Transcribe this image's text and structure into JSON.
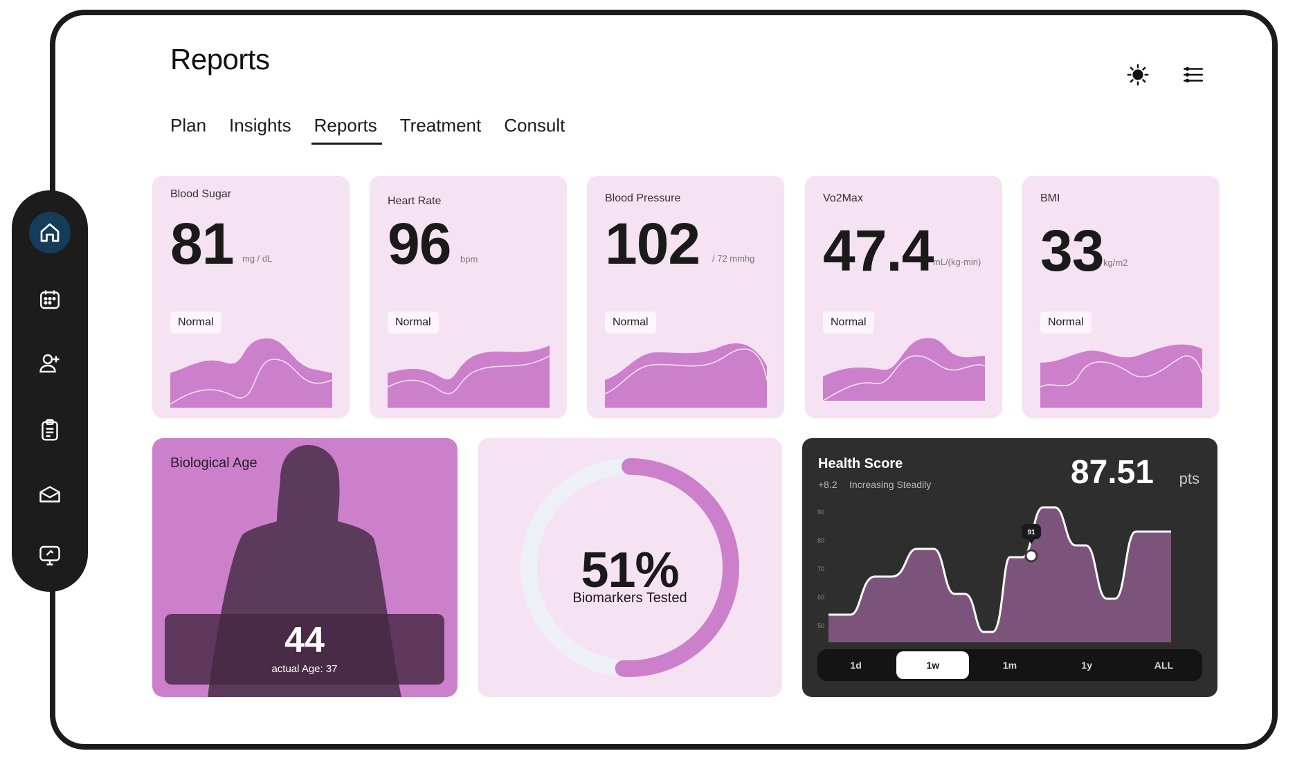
{
  "app": {
    "title": "Reports",
    "theme_icon": "sun-icon",
    "filter_icon": "filter-lines-icon"
  },
  "sidebar": {
    "items": [
      {
        "icon": "home-icon",
        "active": true
      },
      {
        "icon": "calendar-icon",
        "active": false
      },
      {
        "icon": "add-user-icon",
        "active": false
      },
      {
        "icon": "clipboard-icon",
        "active": false
      },
      {
        "icon": "inbox-icon",
        "active": false
      },
      {
        "icon": "monitor-chat-icon",
        "active": false
      }
    ]
  },
  "tabs": [
    {
      "label": "Plan",
      "active": false
    },
    {
      "label": "Insights",
      "active": false
    },
    {
      "label": "Reports",
      "active": true
    },
    {
      "label": "Treatment",
      "active": false
    },
    {
      "label": "Consult",
      "active": false
    }
  ],
  "metrics": [
    {
      "label": "Blood Sugar",
      "value": "81",
      "unit": "mg / dL",
      "status": "Normal"
    },
    {
      "label": "Heart Rate",
      "value": "96",
      "unit": "bpm",
      "status": "Normal"
    },
    {
      "label": "Blood Pressure",
      "value": "102",
      "unit": "/ 72 mmhg",
      "status": "Normal"
    },
    {
      "label": "Vo2Max",
      "value": "47.4",
      "unit": "mL/(kg·min)",
      "status": "Normal"
    },
    {
      "label": "BMI",
      "value": "33",
      "unit": "kg/m2",
      "status": "Normal"
    }
  ],
  "biological_age": {
    "title": "Biological Age",
    "value": "44",
    "actual_label": "actual Age: 37"
  },
  "biomarkers": {
    "percent_label": "51%",
    "percent_value": 0.51,
    "label": "Biomarkers Tested"
  },
  "health_score": {
    "title": "Health Score",
    "delta": "+8.2",
    "status": "Increasing Steadily",
    "score": "87.51",
    "unit": "pts",
    "marker_label": "91",
    "y_ticks": [
      "90",
      "80",
      "70",
      "60",
      "50"
    ],
    "ranges": [
      {
        "label": "1d",
        "active": false
      },
      {
        "label": "1w",
        "active": true
      },
      {
        "label": "1m",
        "active": false
      },
      {
        "label": "1y",
        "active": false
      },
      {
        "label": "ALL",
        "active": false
      }
    ]
  },
  "colors": {
    "card_bg": "#f5e2f3",
    "accent": "#cc80cb",
    "dark": "#1c1c1c",
    "active_nav": "#163c5c"
  }
}
